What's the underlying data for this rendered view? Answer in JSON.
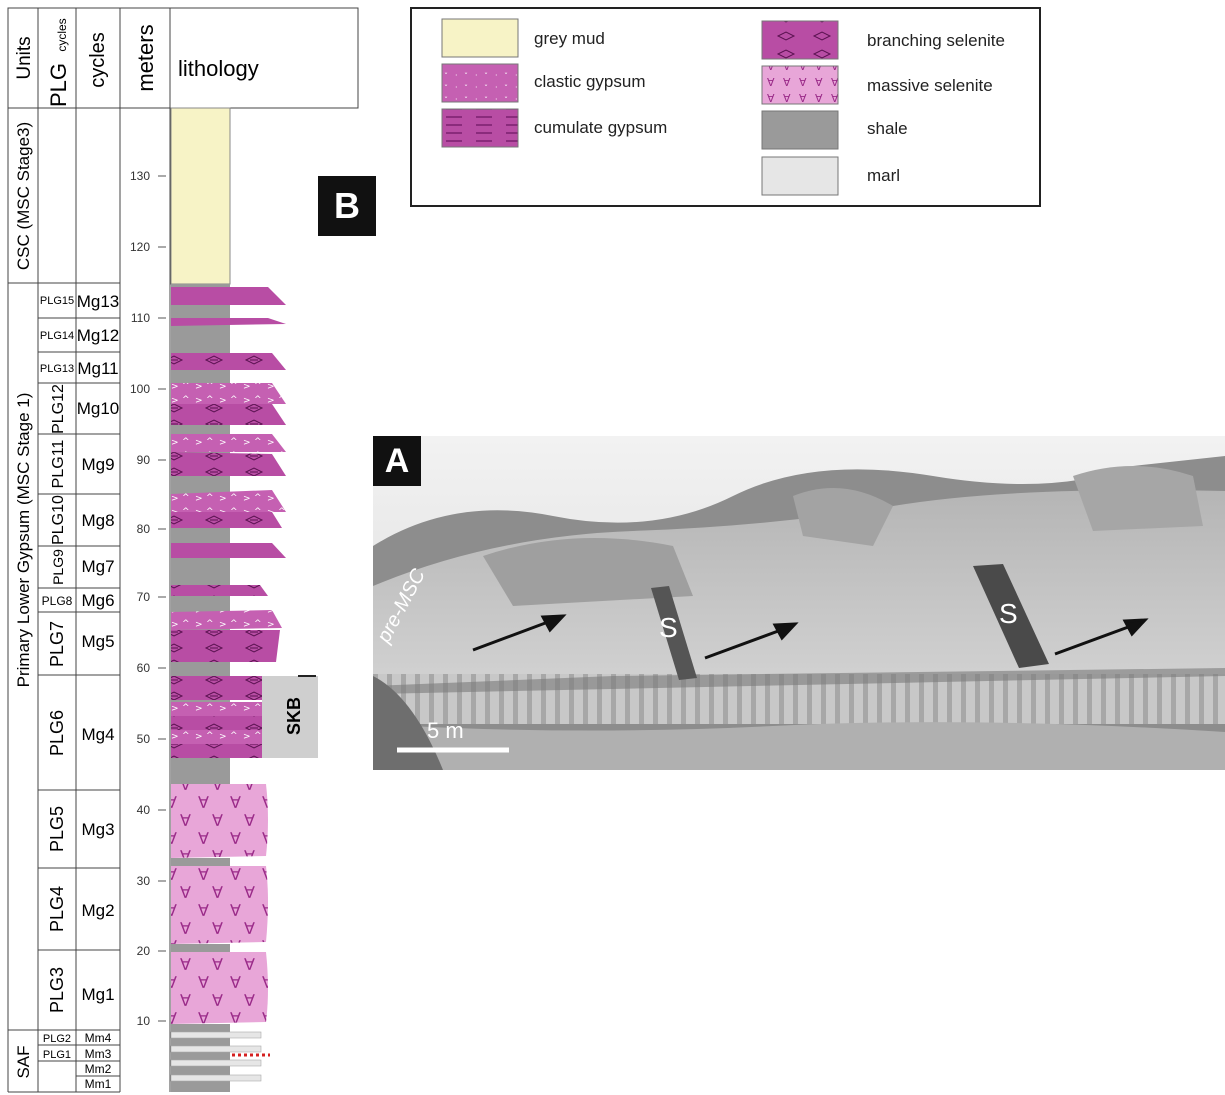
{
  "header": {
    "units": "Units",
    "plg": "PLG",
    "plg_cycles": "cycles",
    "cycles": "cycles",
    "meters": "meters",
    "lithology": "lithology"
  },
  "units": [
    {
      "label": "CSC (MSC Stage3)"
    },
    {
      "label": "Primary Lower Gypsum (MSC Stage 1)"
    },
    {
      "label": "SAF"
    }
  ],
  "plg_labels": [
    "PLG15",
    "PLG14",
    "PLG13",
    "PLG12",
    "PLG11",
    "PLG10",
    "PLG9",
    "PLG8",
    "PLG7",
    "PLG6",
    "PLG5",
    "PLG4",
    "PLG3",
    "PLG2",
    "PLG1"
  ],
  "cycles": [
    "Mg13",
    "Mg12",
    "Mg11",
    "Mg10",
    "Mg9",
    "Mg8",
    "Mg7",
    "Mg6",
    "Mg5",
    "Mg4",
    "Mg3",
    "Mg2",
    "Mg1",
    "Mm4",
    "Mm3",
    "Mm2",
    "Mm1"
  ],
  "meter_ticks": [
    "130",
    "120",
    "110",
    "100",
    "90",
    "80",
    "70",
    "60",
    "50",
    "40",
    "30",
    "20",
    "10"
  ],
  "skb": "SKB",
  "legend": {
    "grey_mud": "grey mud",
    "clastic_gypsum": "clastic gypsum",
    "cumulate_gypsum": "cumulate gypsum",
    "branching_selenite": "branching selenite",
    "massive_selenite": "massive selenite",
    "shale": "shale",
    "marl": "marl"
  },
  "colors": {
    "grey_mud": "#f7f3c6",
    "gypsum": "#b84da4",
    "massive_selenite": "#e8a6d8",
    "shale": "#9a9a9a",
    "marl": "#e6e6e6",
    "badge": "#111111"
  },
  "panel_b": "B",
  "panel_a": "A",
  "photo": {
    "pre_msc": "pre-MSC",
    "s_label": "S",
    "scale_label": "5 m"
  }
}
